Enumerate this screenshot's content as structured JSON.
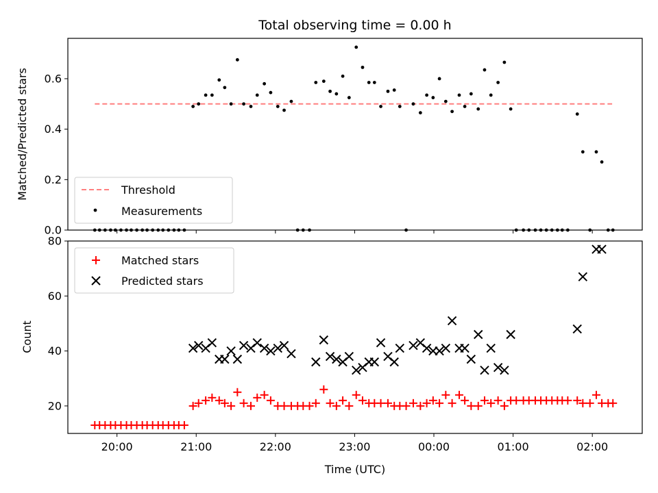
{
  "chart_data": [
    {
      "type": "scatter",
      "title": "Total observing time = 0.00 h",
      "xlabel": "",
      "ylabel": "Matched/Predicted stars",
      "xlim": [
        -0.62,
        6.63
      ],
      "ylim": [
        0,
        0.76
      ],
      "yticks": [
        0.0,
        0.2,
        0.4,
        0.6
      ],
      "ytick_labels": [
        "0.0",
        "0.2",
        "0.4",
        "0.6"
      ],
      "xticks": [
        0,
        1,
        2,
        3,
        4,
        5,
        6
      ],
      "legend_position": "lower-left",
      "threshold": {
        "name": "Threshold",
        "value": 0.5,
        "x_range": [
          -0.28,
          6.25
        ],
        "color": "#ff7f7f",
        "style": "dashed"
      },
      "series": [
        {
          "name": "Measurements",
          "color": "#000000",
          "marker": "dot",
          "x": [
            -0.28,
            -0.22,
            -0.15,
            -0.08,
            -0.02,
            0.05,
            0.12,
            0.18,
            0.25,
            0.32,
            0.38,
            0.45,
            0.52,
            0.58,
            0.65,
            0.72,
            0.78,
            0.85,
            0.96,
            1.03,
            1.12,
            1.2,
            1.29,
            1.36,
            1.44,
            1.52,
            1.6,
            1.69,
            1.77,
            1.86,
            1.94,
            2.03,
            2.11,
            2.2,
            2.28,
            2.35,
            2.43,
            2.51,
            2.61,
            2.69,
            2.77,
            2.85,
            2.93,
            3.02,
            3.1,
            3.18,
            3.25,
            3.33,
            3.42,
            3.5,
            3.57,
            3.65,
            3.74,
            3.83,
            3.91,
            3.99,
            4.07,
            4.15,
            4.23,
            4.32,
            4.39,
            4.47,
            4.56,
            4.64,
            4.72,
            4.81,
            4.89,
            4.97,
            5.04,
            5.13,
            5.2,
            5.28,
            5.35,
            5.42,
            5.49,
            5.56,
            5.62,
            5.69,
            5.81,
            5.88,
            5.97,
            6.05,
            6.12,
            6.2,
            6.26
          ],
          "y": [
            0,
            0,
            0,
            0,
            0,
            0,
            0,
            0,
            0,
            0,
            0,
            0,
            0,
            0,
            0,
            0,
            0,
            0,
            0.49,
            0.5,
            0.535,
            0.535,
            0.595,
            0.565,
            0.5,
            0.675,
            0.5,
            0.49,
            0.535,
            0.58,
            0.545,
            0.49,
            0.475,
            0.51,
            0,
            0,
            0,
            0.585,
            0.59,
            0.55,
            0.54,
            0.61,
            0.525,
            0.725,
            0.645,
            0.585,
            0.585,
            0.49,
            0.55,
            0.555,
            0.49,
            0,
            0.5,
            0.465,
            0.535,
            0.525,
            0.6,
            0.51,
            0.47,
            0.535,
            0.49,
            0.54,
            0.48,
            0.635,
            0.535,
            0.585,
            0.665,
            0.48,
            0,
            0,
            0,
            0,
            0,
            0,
            0,
            0,
            0,
            0,
            0.46,
            0.31,
            0,
            0.31,
            0.27,
            0,
            0
          ]
        }
      ]
    },
    {
      "type": "scatter",
      "title": "",
      "xlabel": "Time (UTC)",
      "ylabel": "Count",
      "xlim": [
        -0.62,
        6.63
      ],
      "ylim": [
        10,
        80
      ],
      "yticks": [
        20,
        40,
        60,
        80
      ],
      "ytick_labels": [
        "20",
        "40",
        "60",
        "80"
      ],
      "xticks": [
        0,
        1,
        2,
        3,
        4,
        5,
        6
      ],
      "xtick_labels": [
        "20:00",
        "21:00",
        "22:00",
        "23:00",
        "00:00",
        "01:00",
        "02:00"
      ],
      "legend_position": "upper-left",
      "series": [
        {
          "name": "Matched stars",
          "color": "#ff0000",
          "marker": "plus",
          "x": [
            -0.28,
            -0.22,
            -0.15,
            -0.08,
            -0.02,
            0.05,
            0.12,
            0.18,
            0.25,
            0.32,
            0.38,
            0.45,
            0.52,
            0.58,
            0.65,
            0.72,
            0.78,
            0.85,
            0.96,
            1.03,
            1.12,
            1.2,
            1.29,
            1.36,
            1.44,
            1.52,
            1.6,
            1.69,
            1.77,
            1.86,
            1.94,
            2.03,
            2.11,
            2.2,
            2.28,
            2.35,
            2.43,
            2.51,
            2.61,
            2.69,
            2.77,
            2.85,
            2.93,
            3.02,
            3.1,
            3.18,
            3.25,
            3.33,
            3.42,
            3.5,
            3.57,
            3.65,
            3.74,
            3.83,
            3.91,
            3.99,
            4.07,
            4.15,
            4.23,
            4.32,
            4.39,
            4.47,
            4.56,
            4.64,
            4.72,
            4.81,
            4.89,
            4.97,
            5.04,
            5.13,
            5.2,
            5.28,
            5.35,
            5.42,
            5.49,
            5.56,
            5.62,
            5.69,
            5.81,
            5.88,
            5.97,
            6.05,
            6.12,
            6.2,
            6.26
          ],
          "y": [
            13,
            13,
            13,
            13,
            13,
            13,
            13,
            13,
            13,
            13,
            13,
            13,
            13,
            13,
            13,
            13,
            13,
            13,
            20,
            21,
            22,
            23,
            22,
            21,
            20,
            25,
            21,
            20,
            23,
            24,
            22,
            20,
            20,
            20,
            20,
            20,
            20,
            21,
            26,
            21,
            20,
            22,
            20,
            24,
            22,
            21,
            21,
            21,
            21,
            20,
            20,
            20,
            21,
            20,
            21,
            22,
            21,
            24,
            21,
            24,
            22,
            20,
            20,
            22,
            21,
            22,
            20,
            22,
            22,
            22,
            22,
            22,
            22,
            22,
            22,
            22,
            22,
            22,
            22,
            21,
            21,
            24,
            21,
            21,
            21
          ]
        },
        {
          "name": "Predicted stars",
          "color": "#000000",
          "marker": "x",
          "x": [
            0.96,
            1.03,
            1.12,
            1.2,
            1.29,
            1.36,
            1.44,
            1.52,
            1.6,
            1.69,
            1.77,
            1.86,
            1.94,
            2.03,
            2.11,
            2.2,
            2.28,
            2.35,
            2.43,
            2.51,
            2.61,
            2.69,
            2.77,
            2.85,
            2.93,
            3.02,
            3.1,
            3.18,
            3.25,
            3.33,
            3.42,
            3.5,
            3.57,
            3.65,
            3.74,
            3.83,
            3.91,
            3.99,
            4.07,
            4.15,
            4.23,
            4.32,
            4.39,
            4.47,
            4.56,
            4.64,
            4.72,
            4.81,
            4.89,
            4.97,
            5.04,
            5.81,
            5.88,
            6.05,
            6.12
          ],
          "y": [
            41,
            42,
            41,
            43,
            37,
            37,
            40,
            37,
            42,
            41,
            43,
            41,
            40,
            41,
            42,
            39,
            null,
            null,
            null,
            36,
            44,
            38,
            37,
            36,
            38,
            33,
            34,
            36,
            36,
            43,
            38,
            36,
            41,
            null,
            42,
            43,
            41,
            40,
            40,
            41,
            51,
            41,
            41,
            37,
            46,
            33,
            41,
            34,
            33,
            46,
            null,
            48,
            67,
            77,
            77
          ]
        }
      ]
    }
  ]
}
